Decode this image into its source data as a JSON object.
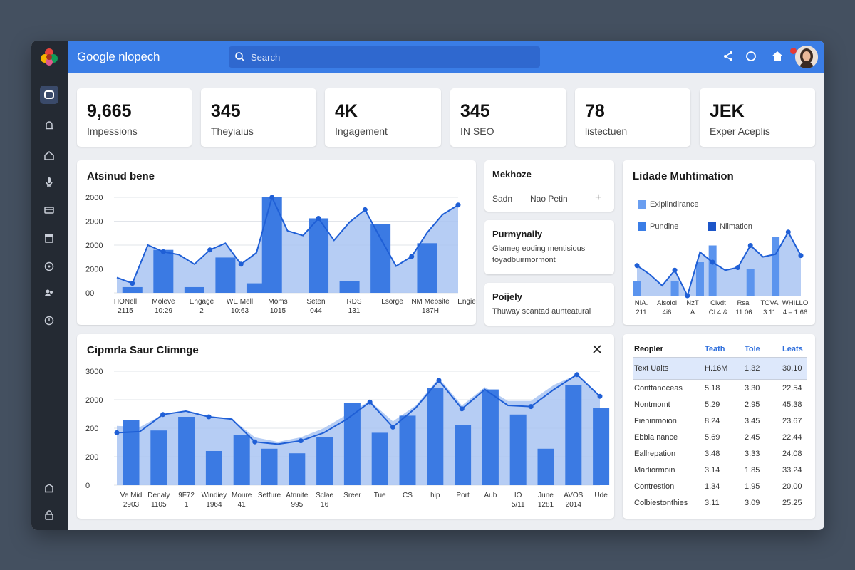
{
  "header": {
    "brand": "Google nlopech",
    "search_placeholder": "Search"
  },
  "stats": [
    {
      "value": "9,665",
      "label": "Impessions"
    },
    {
      "value": "345",
      "label": "Theyiaius"
    },
    {
      "value": "4K",
      "label": "Ingagement"
    },
    {
      "value": "345",
      "label": "IN SEO"
    },
    {
      "value": "78",
      "label": "listectuen"
    },
    {
      "value": "JEK",
      "label": "Exper Aceplis"
    }
  ],
  "chart1": {
    "title": "Atsinud bene",
    "y_ticks": [
      "2000",
      "2000",
      "2000",
      "2000",
      "00"
    ],
    "x_labels": [
      {
        "top": "HONell",
        "bottom": "2115"
      },
      {
        "top": "Moleve",
        "bottom": "10:29"
      },
      {
        "top": "Engage",
        "bottom": "2"
      },
      {
        "top": "WE Mell",
        "bottom": "10:63"
      },
      {
        "top": "Moms",
        "bottom": "1015"
      },
      {
        "top": "Seten",
        "bottom": "044"
      },
      {
        "top": "RDS",
        "bottom": "131"
      },
      {
        "top": "Lsorge",
        "bottom": ""
      },
      {
        "top": "NM Mebsite",
        "bottom": "187H"
      },
      {
        "top": "Engies",
        "bottom": ""
      }
    ]
  },
  "panel_a": {
    "title": "Mekhoze",
    "left": "Sadn",
    "right": "Nao Petin",
    "plus": "+"
  },
  "panel_b": {
    "title": "Purmynaily",
    "line1": "Glameg eoding mentisious",
    "line2": "toyadbuirmormont"
  },
  "panel_c": {
    "title": "Poijely",
    "line1": "Thuway scantad aunteatural"
  },
  "chart2": {
    "title": "Lidade Muhtimation",
    "legend": [
      {
        "label": "Exiplindirance",
        "color": "#6a9ef0"
      },
      {
        "label": "Pundine",
        "color": "#3a7de6"
      },
      {
        "label": "Niimation",
        "color": "#1c55c8"
      }
    ],
    "x_labels": [
      {
        "top": "NIA.",
        "bottom": "211"
      },
      {
        "top": "Alsoiol",
        "bottom": "4i6"
      },
      {
        "top": "NzT",
        "bottom": "A"
      },
      {
        "top": "Clvdt",
        "bottom": "CI 4 &"
      },
      {
        "top": "Rsal",
        "bottom": "11.06"
      },
      {
        "top": "TOVA",
        "bottom": "3.11"
      },
      {
        "top": "WHILLO",
        "bottom": "4 – 1.66"
      }
    ]
  },
  "chart3": {
    "title": "Cipmrla Saur Climnge",
    "y_ticks": [
      "3000",
      "2000",
      "200",
      "200",
      "0"
    ],
    "x_labels": [
      {
        "top": "Ve Mid",
        "bottom": "2903"
      },
      {
        "top": "Denaly",
        "bottom": "1105"
      },
      {
        "top": "9F72",
        "bottom": "1"
      },
      {
        "top": "Windiey",
        "bottom": "1964"
      },
      {
        "top": "Moure",
        "bottom": "41"
      },
      {
        "top": "Setfure",
        "bottom": ""
      },
      {
        "top": "Atnnite",
        "bottom": "995"
      },
      {
        "top": "Sclae",
        "bottom": "16"
      },
      {
        "top": "Sreer",
        "bottom": ""
      },
      {
        "top": "Tue",
        "bottom": ""
      },
      {
        "top": "CS",
        "bottom": ""
      },
      {
        "top": "hip",
        "bottom": ""
      },
      {
        "top": "Port",
        "bottom": ""
      },
      {
        "top": "Aub",
        "bottom": ""
      },
      {
        "top": "IO",
        "bottom": "5/11"
      },
      {
        "top": "June",
        "bottom": "1281"
      },
      {
        "top": "AVOS",
        "bottom": "2014"
      },
      {
        "top": "Ude",
        "bottom": ""
      }
    ]
  },
  "table": {
    "headers": [
      "Reopler",
      "Teath",
      "Tole",
      "Leats"
    ],
    "highlight": [
      "Text Ualts",
      "H.16M",
      "1.32",
      "30.10"
    ],
    "rows": [
      [
        "Conttanoceas",
        "5.18",
        "3.30",
        "22.54"
      ],
      [
        "Nontmomt",
        "5.29",
        "2.95",
        "45.38"
      ],
      [
        "Fiehinmoion",
        "8.24",
        "3.45",
        "23.67"
      ],
      [
        "Ebbia nance",
        "5.69",
        "2.45",
        "22.44"
      ],
      [
        "Eallrepation",
        "3.48",
        "3.33",
        "24.08"
      ],
      [
        "Marliormoin",
        "3.14",
        "1.85",
        "33.24"
      ],
      [
        "Contrestion",
        "1.34",
        "1.95",
        "20.00"
      ],
      [
        "Colbiestonthies",
        "3.11",
        "3.09",
        "25.25"
      ]
    ]
  },
  "colors": {
    "accent": "#3a7de6",
    "sidebar": "#242a33",
    "bar": "#3b7ae3",
    "area": "#a9c4f2",
    "line": "#1f5fd6"
  }
}
